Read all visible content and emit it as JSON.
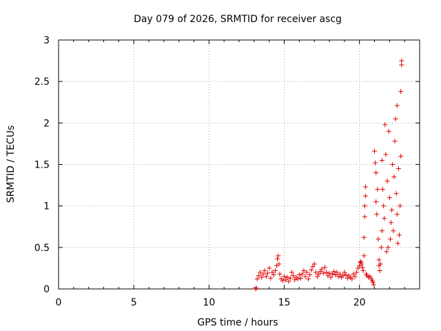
{
  "chart_data": {
    "type": "scatter",
    "title": "Day 079 of 2026, SRMTID for receiver ascg",
    "xlabel": "GPS time / hours",
    "ylabel": "SRMTID / TECUs",
    "xlim": [
      0,
      24
    ],
    "ylim": [
      0,
      3
    ],
    "xticks": [
      0,
      5,
      10,
      15,
      20
    ],
    "xtick_labels": [
      "0",
      "5",
      "10",
      "15",
      "20"
    ],
    "yticks": [
      0,
      0.5,
      1,
      1.5,
      2,
      2.5,
      3
    ],
    "ytick_labels": [
      "0",
      "0.5",
      "1",
      "1.5",
      "2",
      "2.5",
      "3"
    ],
    "grid": true,
    "marker": "+",
    "color": "#e00000",
    "series": [
      {
        "name": "SRMTID",
        "points": [
          [
            13.1,
            0.0
          ],
          [
            13.15,
            0.01
          ],
          [
            13.2,
            0.12
          ],
          [
            13.3,
            0.16
          ],
          [
            13.4,
            0.2
          ],
          [
            13.5,
            0.14
          ],
          [
            13.6,
            0.18
          ],
          [
            13.7,
            0.22
          ],
          [
            13.8,
            0.15
          ],
          [
            13.9,
            0.19
          ],
          [
            14.0,
            0.25
          ],
          [
            14.1,
            0.13
          ],
          [
            14.2,
            0.2
          ],
          [
            14.3,
            0.17
          ],
          [
            14.4,
            0.22
          ],
          [
            14.5,
            0.28
          ],
          [
            14.55,
            0.36
          ],
          [
            14.6,
            0.4
          ],
          [
            14.65,
            0.3
          ],
          [
            14.7,
            0.18
          ],
          [
            14.8,
            0.12
          ],
          [
            14.9,
            0.1
          ],
          [
            15.0,
            0.15
          ],
          [
            15.1,
            0.11
          ],
          [
            15.2,
            0.14
          ],
          [
            15.3,
            0.09
          ],
          [
            15.4,
            0.13
          ],
          [
            15.5,
            0.2
          ],
          [
            15.6,
            0.16
          ],
          [
            15.7,
            0.11
          ],
          [
            15.8,
            0.14
          ],
          [
            15.9,
            0.12
          ],
          [
            16.0,
            0.17
          ],
          [
            16.1,
            0.13
          ],
          [
            16.2,
            0.18
          ],
          [
            16.3,
            0.22
          ],
          [
            16.4,
            0.15
          ],
          [
            16.5,
            0.2
          ],
          [
            16.6,
            0.12
          ],
          [
            16.7,
            0.17
          ],
          [
            16.8,
            0.23
          ],
          [
            16.9,
            0.27
          ],
          [
            17.0,
            0.3
          ],
          [
            17.1,
            0.2
          ],
          [
            17.2,
            0.15
          ],
          [
            17.3,
            0.18
          ],
          [
            17.4,
            0.21
          ],
          [
            17.5,
            0.24
          ],
          [
            17.6,
            0.19
          ],
          [
            17.7,
            0.26
          ],
          [
            17.8,
            0.2
          ],
          [
            17.9,
            0.16
          ],
          [
            18.0,
            0.19
          ],
          [
            18.1,
            0.14
          ],
          [
            18.2,
            0.18
          ],
          [
            18.3,
            0.21
          ],
          [
            18.4,
            0.17
          ],
          [
            18.5,
            0.2
          ],
          [
            18.6,
            0.15
          ],
          [
            18.7,
            0.18
          ],
          [
            18.8,
            0.14
          ],
          [
            18.9,
            0.16
          ],
          [
            19.0,
            0.2
          ],
          [
            19.1,
            0.17
          ],
          [
            19.2,
            0.13
          ],
          [
            19.3,
            0.16
          ],
          [
            19.4,
            0.14
          ],
          [
            19.5,
            0.12
          ],
          [
            19.6,
            0.18
          ],
          [
            19.7,
            0.15
          ],
          [
            19.8,
            0.2
          ],
          [
            19.9,
            0.25
          ],
          [
            20.0,
            0.28
          ],
          [
            20.05,
            0.32
          ],
          [
            20.1,
            0.33
          ],
          [
            20.15,
            0.3
          ],
          [
            20.2,
            0.26
          ],
          [
            20.25,
            0.22
          ],
          [
            20.3,
            0.4
          ],
          [
            20.3,
            0.62
          ],
          [
            20.35,
            0.87
          ],
          [
            20.35,
            1.0
          ],
          [
            20.4,
            1.12
          ],
          [
            20.4,
            1.23
          ],
          [
            20.45,
            0.18
          ],
          [
            20.5,
            0.16
          ],
          [
            20.6,
            0.14
          ],
          [
            20.7,
            0.15
          ],
          [
            20.8,
            0.12
          ],
          [
            20.85,
            0.1
          ],
          [
            20.9,
            0.08
          ],
          [
            20.95,
            0.05
          ],
          [
            21.0,
            1.66
          ],
          [
            21.05,
            1.52
          ],
          [
            21.1,
            1.4
          ],
          [
            21.1,
            1.05
          ],
          [
            21.15,
            0.9
          ],
          [
            21.2,
            1.2
          ],
          [
            21.25,
            0.6
          ],
          [
            21.3,
            0.35
          ],
          [
            21.3,
            0.28
          ],
          [
            21.35,
            0.22
          ],
          [
            21.4,
            0.3
          ],
          [
            21.45,
            0.5
          ],
          [
            21.5,
            0.7
          ],
          [
            21.5,
            1.55
          ],
          [
            21.55,
            1.2
          ],
          [
            21.6,
            1.0
          ],
          [
            21.65,
            0.85
          ],
          [
            21.7,
            1.98
          ],
          [
            21.75,
            1.62
          ],
          [
            21.8,
            0.45
          ],
          [
            21.85,
            1.3
          ],
          [
            21.9,
            0.5
          ],
          [
            21.95,
            1.9
          ],
          [
            22.0,
            1.1
          ],
          [
            22.05,
            0.6
          ],
          [
            22.1,
            0.8
          ],
          [
            22.15,
            0.95
          ],
          [
            22.2,
            1.5
          ],
          [
            22.25,
            0.7
          ],
          [
            22.3,
            1.35
          ],
          [
            22.35,
            1.78
          ],
          [
            22.4,
            2.05
          ],
          [
            22.45,
            1.15
          ],
          [
            22.5,
            0.9
          ],
          [
            22.5,
            2.21
          ],
          [
            22.55,
            0.55
          ],
          [
            22.6,
            1.45
          ],
          [
            22.65,
            0.65
          ],
          [
            22.7,
            1.0
          ],
          [
            22.75,
            1.6
          ],
          [
            22.75,
            2.38
          ],
          [
            22.8,
            2.7
          ],
          [
            22.8,
            2.75
          ]
        ]
      }
    ]
  }
}
